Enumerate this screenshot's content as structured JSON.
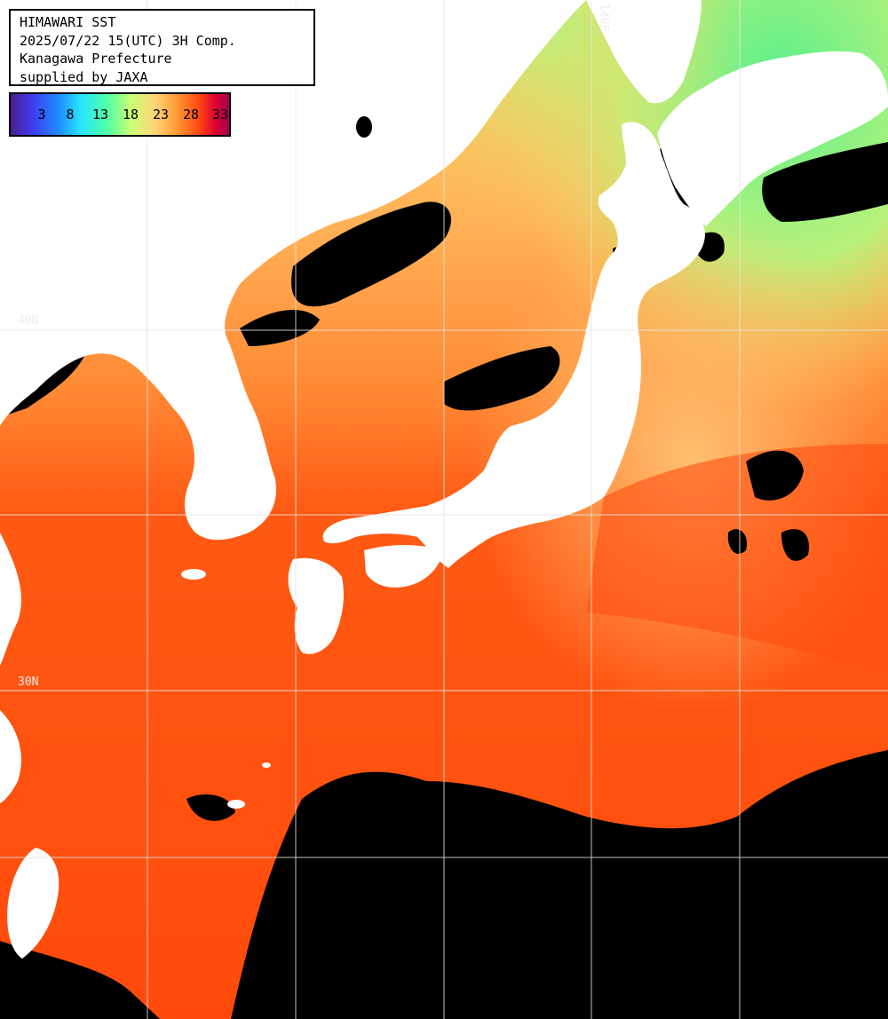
{
  "info": {
    "line1": "HIMAWARI SST",
    "line2": "2025/07/22 15(UTC) 3H Comp.",
    "line3": "Kanagawa Prefecture",
    "line4": "supplied by JAXA"
  },
  "colorbar": {
    "ticks": [
      "3",
      "8",
      "13",
      "18",
      "23",
      "28",
      "33"
    ]
  },
  "grid_labels": {
    "lon_top": "140E",
    "lat_upper": "40N",
    "lat_mid": "30N"
  },
  "colors": {
    "land": "#ffffff",
    "cloud": "#000000",
    "warm_sea": "#ff5a14",
    "cool_sea": "#ffcb6a",
    "cold_sea": "#8cf07a",
    "grid": "#e6e6e6"
  }
}
